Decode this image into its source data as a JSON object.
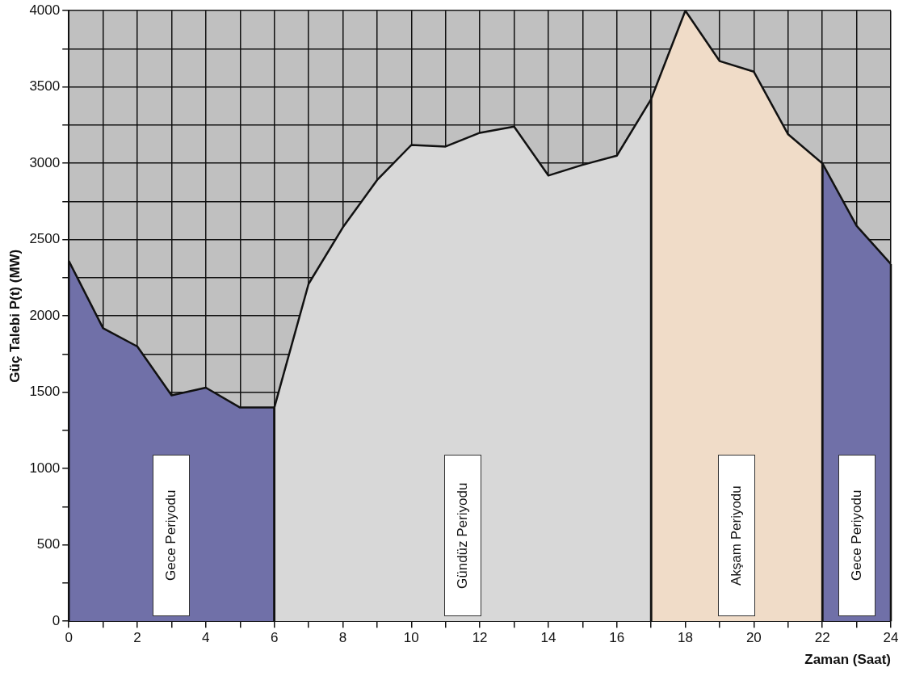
{
  "chart_data": {
    "type": "area",
    "xlabel": "Zaman (Saat)",
    "ylabel": "Güç Talebi P(t) (MW)",
    "series": [
      {
        "name": "Gece Periyodu",
        "color": "#7070a8",
        "x": [
          0,
          1,
          2,
          3,
          4,
          5,
          6
        ],
        "values": [
          2360,
          1920,
          1800,
          1480,
          1530,
          1400,
          1400
        ]
      },
      {
        "name": "Gündüz Periyodu",
        "color": "#d8d8d8",
        "x": [
          6,
          7,
          8,
          9,
          10,
          11,
          12,
          13,
          14,
          15,
          16,
          17
        ],
        "values": [
          1400,
          2210,
          2580,
          2890,
          3120,
          3110,
          3200,
          3240,
          2920,
          2990,
          3050,
          3420
        ]
      },
      {
        "name": "Akşam Periyodu",
        "color": "#f0dcc8",
        "x": [
          17,
          18,
          19,
          20,
          21,
          22
        ],
        "values": [
          3420,
          4000,
          3670,
          3600,
          3190,
          3000
        ]
      },
      {
        "name": "Gece Periyodu",
        "color": "#7070a8",
        "x": [
          22,
          23,
          24
        ],
        "values": [
          3000,
          2590,
          2340
        ]
      }
    ],
    "xlim": [
      0,
      24
    ],
    "xticks": [
      0,
      {
        "value": 1,
        "label": null
      },
      2,
      {
        "value": 3,
        "label": null
      },
      4,
      {
        "value": 5,
        "label": null
      },
      6,
      {
        "value": 7,
        "label": null
      },
      8,
      {
        "value": 9,
        "label": null
      },
      10,
      {
        "value": 11,
        "label": null
      },
      12,
      {
        "value": 13,
        "label": null
      },
      14,
      {
        "value": 15,
        "label": null
      },
      16,
      {
        "value": 17,
        "label": null
      },
      18,
      {
        "value": 19,
        "label": null
      },
      20,
      {
        "value": 21,
        "label": null
      },
      22,
      {
        "value": 23,
        "label": null
      },
      24
    ],
    "ylim": [
      0,
      4000
    ],
    "yticks": [
      0,
      {
        "value": 250,
        "label": null
      },
      500,
      {
        "value": 750,
        "label": null
      },
      1000,
      {
        "value": 1250,
        "label": null
      },
      1500,
      {
        "value": 1750,
        "label": null
      },
      2000,
      {
        "value": 2250,
        "label": null
      },
      2500,
      {
        "value": 2750,
        "label": null
      },
      3000,
      {
        "value": 3250,
        "label": null
      },
      3500,
      {
        "value": 3750,
        "label": null
      },
      4000
    ],
    "grid": true,
    "legend": false,
    "marker": "none",
    "line_style": "solid"
  }
}
